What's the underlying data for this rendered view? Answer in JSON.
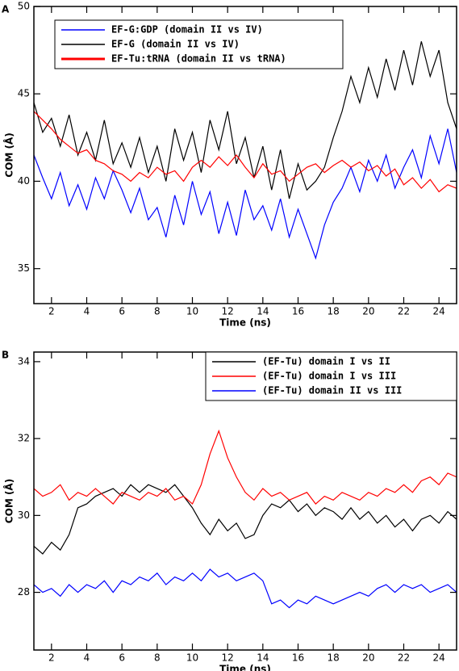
{
  "chart_data": [
    {
      "type": "line",
      "panel_label": "A",
      "x_label": "Time (ns)",
      "y_label": "COM (Å)",
      "xlim": [
        1,
        25
      ],
      "ylim": [
        33,
        50
      ],
      "xticks": [
        2,
        4,
        6,
        8,
        10,
        12,
        14,
        16,
        18,
        20,
        22,
        24
      ],
      "yticks": [
        35,
        40,
        45,
        50
      ],
      "legend": "top-left",
      "x": [
        1,
        1.5,
        2,
        2.5,
        3,
        3.5,
        4,
        4.5,
        5,
        5.5,
        6,
        6.5,
        7,
        7.5,
        8,
        8.5,
        9,
        9.5,
        10,
        10.5,
        11,
        11.5,
        12,
        12.5,
        13,
        13.5,
        14,
        14.5,
        15,
        15.5,
        16,
        16.5,
        17,
        17.5,
        18,
        18.5,
        19,
        19.5,
        20,
        20.5,
        21,
        21.5,
        22,
        22.5,
        23,
        23.5,
        24,
        24.5,
        25
      ],
      "series": [
        {
          "name": "EF-G:GDP (domain II vs IV)",
          "color": "#0000ff",
          "values": [
            41.5,
            40.2,
            39.0,
            40.5,
            38.6,
            39.8,
            38.4,
            40.2,
            39.0,
            40.6,
            39.5,
            38.2,
            39.6,
            37.8,
            38.5,
            36.8,
            39.2,
            37.5,
            40.0,
            38.1,
            39.4,
            37.0,
            38.8,
            36.9,
            39.5,
            37.8,
            38.6,
            37.2,
            39.0,
            36.8,
            38.4,
            37.0,
            35.6,
            37.5,
            38.8,
            39.6,
            40.8,
            39.4,
            41.2,
            40.0,
            41.5,
            39.6,
            40.8,
            41.8,
            40.2,
            42.6,
            41.0,
            43.0,
            40.5
          ]
        },
        {
          "name": "EF-G (domain II vs IV)",
          "color": "#000000",
          "values": [
            44.5,
            42.8,
            43.6,
            42.0,
            43.8,
            41.5,
            42.8,
            41.2,
            43.5,
            41.0,
            42.2,
            40.8,
            42.5,
            40.5,
            42.0,
            40.0,
            43.0,
            41.2,
            42.8,
            40.5,
            43.5,
            41.8,
            44.0,
            41.0,
            42.5,
            40.2,
            42.0,
            39.5,
            41.8,
            39.0,
            41.0,
            39.5,
            40.0,
            40.8,
            42.5,
            44.0,
            46.0,
            44.5,
            46.5,
            44.8,
            47.0,
            45.2,
            47.5,
            45.5,
            48.0,
            46.0,
            47.5,
            44.5,
            43.0
          ]
        },
        {
          "name": "EF-Tu:tRNA (domain II vs tRNA)",
          "color": "#ff0000",
          "values": [
            44.0,
            43.5,
            43.0,
            42.4,
            42.0,
            41.6,
            41.8,
            41.2,
            41.0,
            40.6,
            40.4,
            40.0,
            40.5,
            40.2,
            40.8,
            40.4,
            40.6,
            40.0,
            40.8,
            41.2,
            40.8,
            41.4,
            40.9,
            41.5,
            40.8,
            40.2,
            41.0,
            40.4,
            40.6,
            40.0,
            40.4,
            40.8,
            41.0,
            40.5,
            40.9,
            41.2,
            40.8,
            41.1,
            40.6,
            40.9,
            40.3,
            40.7,
            39.8,
            40.2,
            39.6,
            40.1,
            39.4,
            39.8,
            39.6
          ]
        }
      ]
    },
    {
      "type": "line",
      "panel_label": "B",
      "x_label": "Time (ns)",
      "y_label": "COM (Å)",
      "xlim": [
        1,
        25
      ],
      "ylim": [
        26.5,
        34.25
      ],
      "xticks": [
        2,
        4,
        6,
        8,
        10,
        12,
        14,
        16,
        18,
        20,
        22,
        24
      ],
      "yticks": [
        28,
        30,
        32,
        34
      ],
      "legend": "top-right",
      "x": [
        1,
        1.5,
        2,
        2.5,
        3,
        3.5,
        4,
        4.5,
        5,
        5.5,
        6,
        6.5,
        7,
        7.5,
        8,
        8.5,
        9,
        9.5,
        10,
        10.5,
        11,
        11.5,
        12,
        12.5,
        13,
        13.5,
        14,
        14.5,
        15,
        15.5,
        16,
        16.5,
        17,
        17.5,
        18,
        18.5,
        19,
        19.5,
        20,
        20.5,
        21,
        21.5,
        22,
        22.5,
        23,
        23.5,
        24,
        24.5,
        25
      ],
      "series": [
        {
          "name": "(EF-Tu) domain I vs II",
          "color": "#000000",
          "values": [
            29.2,
            29.0,
            29.3,
            29.1,
            29.5,
            30.2,
            30.3,
            30.5,
            30.6,
            30.7,
            30.5,
            30.8,
            30.6,
            30.8,
            30.7,
            30.6,
            30.8,
            30.5,
            30.2,
            29.8,
            29.5,
            29.9,
            29.6,
            29.8,
            29.4,
            29.5,
            30.0,
            30.3,
            30.2,
            30.4,
            30.1,
            30.3,
            30.0,
            30.2,
            30.1,
            29.9,
            30.2,
            29.9,
            30.1,
            29.8,
            30.0,
            29.7,
            29.9,
            29.6,
            29.9,
            30.0,
            29.8,
            30.1,
            29.9
          ]
        },
        {
          "name": "(EF-Tu) domain I vs III",
          "color": "#ff0000",
          "values": [
            30.7,
            30.5,
            30.6,
            30.8,
            30.4,
            30.6,
            30.5,
            30.7,
            30.5,
            30.3,
            30.6,
            30.5,
            30.4,
            30.6,
            30.5,
            30.7,
            30.4,
            30.5,
            30.3,
            30.8,
            31.6,
            32.2,
            31.5,
            31.0,
            30.6,
            30.4,
            30.7,
            30.5,
            30.6,
            30.4,
            30.5,
            30.6,
            30.3,
            30.5,
            30.4,
            30.6,
            30.5,
            30.4,
            30.6,
            30.5,
            30.7,
            30.6,
            30.8,
            30.6,
            30.9,
            31.0,
            30.8,
            31.1,
            31.0
          ]
        },
        {
          "name": "(EF-Tu) domain II vs III",
          "color": "#0000ff",
          "values": [
            28.2,
            28.0,
            28.1,
            27.9,
            28.2,
            28.0,
            28.2,
            28.1,
            28.3,
            28.0,
            28.3,
            28.2,
            28.4,
            28.3,
            28.5,
            28.2,
            28.4,
            28.3,
            28.5,
            28.3,
            28.6,
            28.4,
            28.5,
            28.3,
            28.4,
            28.5,
            28.3,
            27.7,
            27.8,
            27.6,
            27.8,
            27.7,
            27.9,
            27.8,
            27.7,
            27.8,
            27.9,
            28.0,
            27.9,
            28.1,
            28.2,
            28.0,
            28.2,
            28.1,
            28.2,
            28.0,
            28.1,
            28.2,
            28.0
          ]
        }
      ]
    }
  ]
}
